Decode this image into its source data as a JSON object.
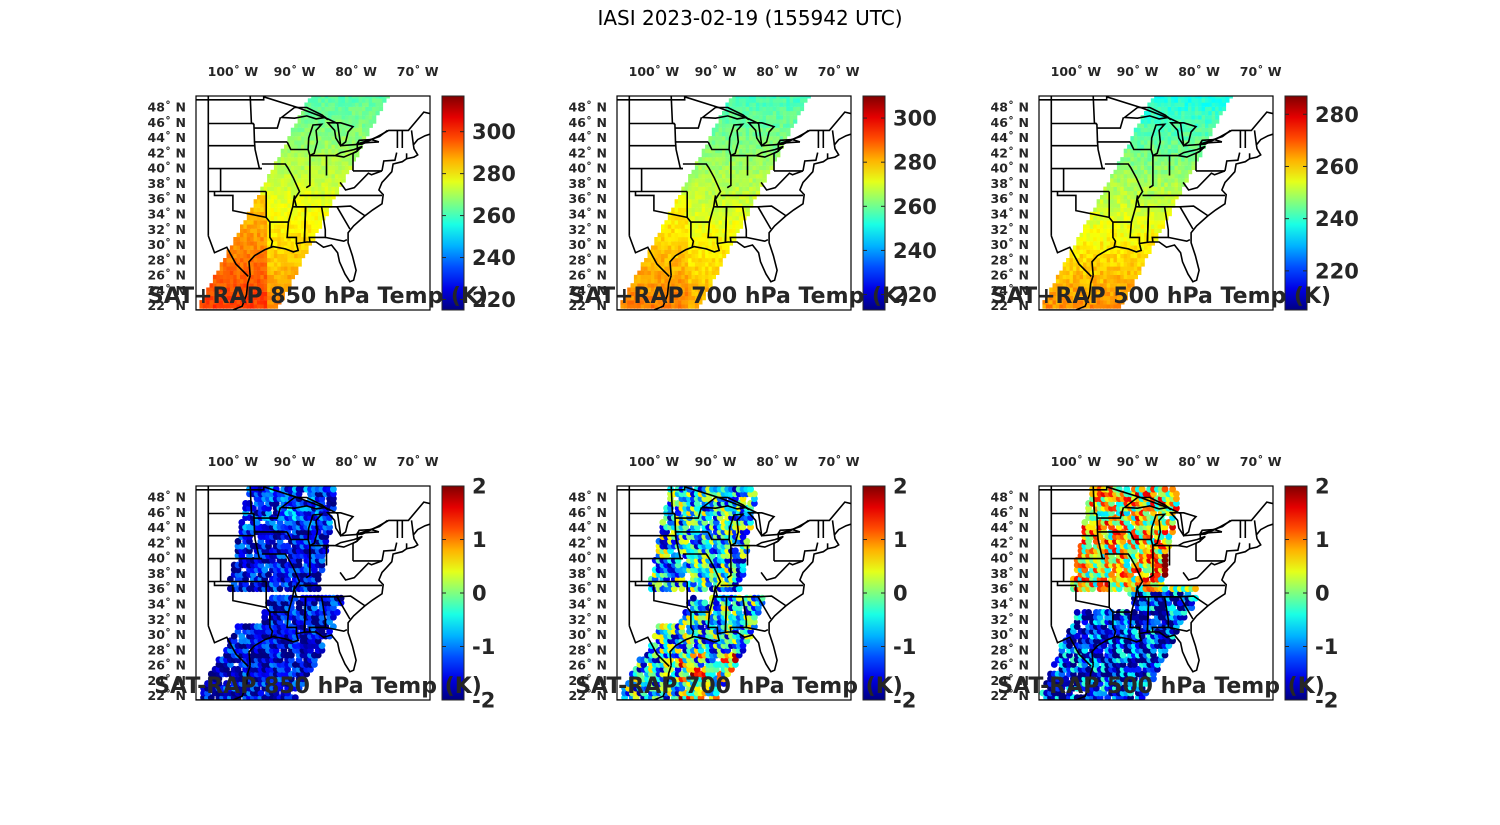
{
  "title": "IASI 2023-02-19 (155942 UTC)",
  "colormap": "jet",
  "map": {
    "lon_labels": [
      "100˚ W",
      "90˚ W",
      "80˚ W",
      "70˚ W"
    ],
    "lon_values": [
      -100,
      -90,
      -80,
      -70
    ],
    "lat_labels": [
      "48˚ N",
      "46˚ N",
      "44˚ N",
      "42˚ N",
      "40˚ N",
      "38˚ N",
      "36˚ N",
      "34˚ N",
      "32˚ N",
      "30˚ N",
      "28˚ N",
      "26˚ N",
      "24˚ N",
      "22˚ N"
    ],
    "lat_values": [
      48,
      46,
      44,
      42,
      40,
      38,
      36,
      34,
      32,
      30,
      28,
      26,
      24,
      22
    ],
    "lon_range": [
      -106,
      -68
    ],
    "lat_range": [
      21.5,
      49.5
    ]
  },
  "panels": [
    {
      "id": "p850sum",
      "caption": "SAT+RAP 850 hPa Temp (K)",
      "kind": "sum",
      "clim": [
        215,
        317
      ],
      "cb_ticks": [
        220,
        240,
        260,
        280,
        300
      ],
      "cb_labels": [
        "220",
        "240",
        "260",
        "280",
        "300"
      ]
    },
    {
      "id": "p700sum",
      "caption": "SAT+RAP 700 hPa Temp (K)",
      "kind": "sum",
      "clim": [
        213,
        310
      ],
      "cb_ticks": [
        220,
        240,
        260,
        280,
        300
      ],
      "cb_labels": [
        "220",
        "240",
        "260",
        "280",
        "300"
      ]
    },
    {
      "id": "p500sum",
      "caption": "SAT+RAP 500 hPa Temp (K)",
      "kind": "sum",
      "clim": [
        205,
        287
      ],
      "cb_ticks": [
        220,
        240,
        260,
        280
      ],
      "cb_labels": [
        "220",
        "240",
        "260",
        "280"
      ]
    },
    {
      "id": "p850diff",
      "caption": "SAT-RAP 850 hPa Temp (K)",
      "kind": "diff",
      "clim": [
        -2,
        2
      ],
      "cb_ticks": [
        -2,
        -1,
        0,
        1,
        2
      ],
      "cb_labels": [
        "-2",
        "-1",
        "0",
        "1",
        "2"
      ]
    },
    {
      "id": "p700diff",
      "caption": "SAT-RAP 700 hPa Temp (K)",
      "kind": "diff",
      "clim": [
        -2,
        2
      ],
      "cb_ticks": [
        -2,
        -1,
        0,
        1,
        2
      ],
      "cb_labels": [
        "-2",
        "-1",
        "0",
        "1",
        "2"
      ]
    },
    {
      "id": "p500diff",
      "caption": "SAT-RAP 500 hPa Temp (K)",
      "kind": "diff",
      "clim": [
        -2,
        2
      ],
      "cb_ticks": [
        -2,
        -1,
        0,
        1,
        2
      ],
      "cb_labels": [
        "-2",
        "-1",
        "0",
        "1",
        "2"
      ]
    }
  ]
}
